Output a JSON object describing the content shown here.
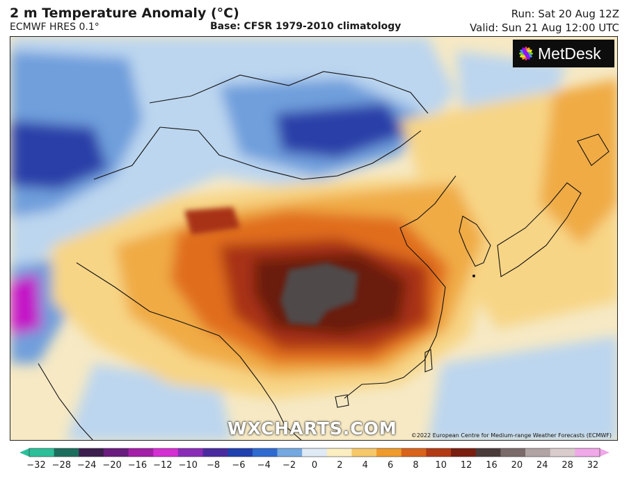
{
  "header": {
    "title": "2 m Temperature Anomaly (°C)",
    "subtitle": "ECMWF HRES 0.1°",
    "base": "Base: CFSR 1979-2010 climatology",
    "run": "Run: Sat 20 Aug 12Z",
    "valid": "Valid: Sun 21 Aug 12:00 UTC"
  },
  "logo": {
    "text": "MetDesk",
    "icon": "metdesk-flower-icon"
  },
  "watermark": "WXCHARTS.COM",
  "credit": "©2022 European Centre for Medium-range Weather Forecasts (ECMWF)",
  "colorbar": {
    "unit": "°C",
    "ticks": [
      "−32",
      "−28",
      "−24",
      "−20",
      "−16",
      "−12",
      "−10",
      "−8",
      "−6",
      "−4",
      "−2",
      "0",
      "2",
      "4",
      "6",
      "8",
      "10",
      "12",
      "16",
      "20",
      "24",
      "28",
      "32"
    ],
    "colors": [
      "#2bbf9a",
      "#1b6e5e",
      "#3c1e4e",
      "#6a1b7e",
      "#a31fa8",
      "#d42fd2",
      "#8a2bb8",
      "#4a2aa0",
      "#2040b0",
      "#2e6ad0",
      "#74a8e0",
      "#dfeaf5",
      "#fbeec0",
      "#f6c86a",
      "#ef9a2a",
      "#d9631a",
      "#b23a14",
      "#7a1e10",
      "#4a3a3a",
      "#7a6a6a",
      "#b2a4a4",
      "#dacccc",
      "#f0a8e8"
    ]
  },
  "map": {
    "colors": {
      "water": "#f8f0d0",
      "neutral": "#f6e9c4",
      "cold_light": "#bcd6ef",
      "cold_mid": "#6f9fdc",
      "cold_deep": "#2c3fa8",
      "very_cold": "#c319c8",
      "warm_light": "#f7d586",
      "warm": "#f0ab44",
      "hot": "#e06d1c",
      "very_hot": "#a83114",
      "extreme": "#6a1d10",
      "record": "#4f4848"
    }
  }
}
